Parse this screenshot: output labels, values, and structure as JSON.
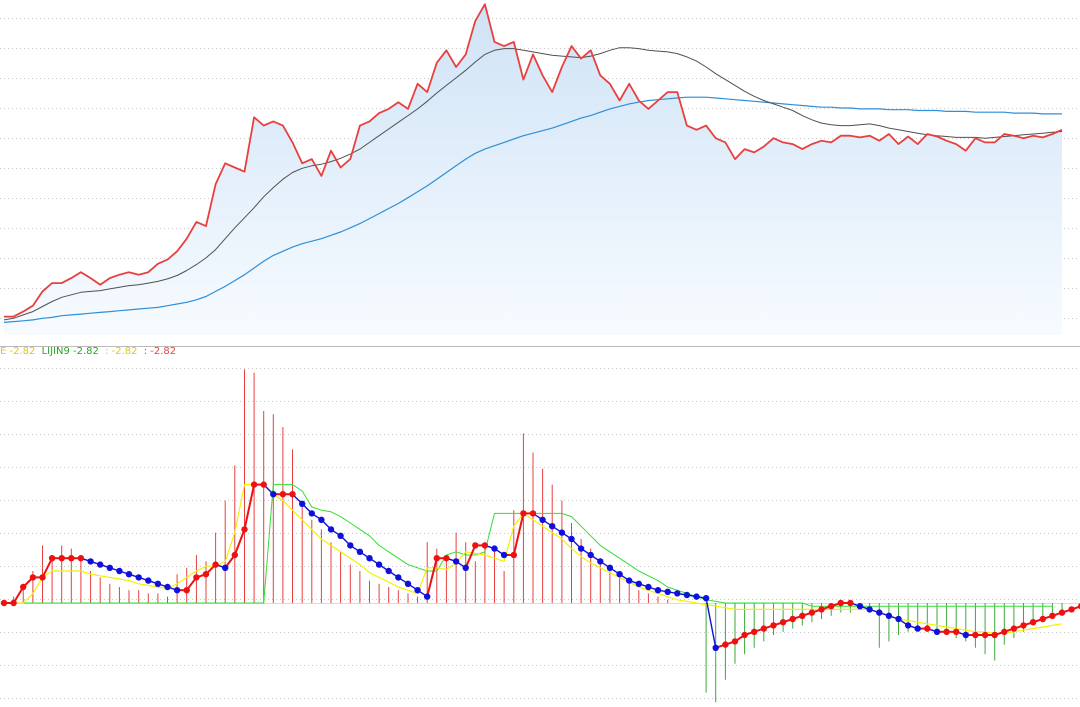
{
  "colors": {
    "price": "#e8403f",
    "ma_short": "#505050",
    "ma_long": "#2f8fd8",
    "fill_top": "#cfe3f6",
    "fill_bottom": "#f7fbff",
    "bar_up": "#e8403f",
    "bar_down": "#3fa83a",
    "dot_up": "#ee1111",
    "dot_down": "#1010dd",
    "line_yellow": "#f2f200",
    "line_green": "#33dd33",
    "grid": "#c8c8c8",
    "separator": "#bbbbbb"
  },
  "legend": [
    {
      "text": "E -2.82",
      "color": "#e6c800"
    },
    {
      "text": "LIJIN9 -2.82",
      "color": "#22aa22"
    },
    {
      "text": ": -2.82",
      "color": "#e6c800"
    },
    {
      "text": ": -2.82",
      "color": "#e8403f"
    }
  ],
  "chart_data": [
    {
      "type": "area",
      "grid": true,
      "series": [
        {
          "values": [
            22,
            22,
            28,
            35,
            52,
            62,
            62,
            68,
            75,
            68,
            60,
            68,
            72,
            75,
            72,
            75,
            85,
            90,
            100,
            115,
            135,
            130,
            180,
            205,
            200,
            195,
            260,
            250,
            255,
            250,
            230,
            205,
            210,
            190,
            220,
            200,
            210,
            250,
            255,
            265,
            270,
            278,
            270,
            300,
            290,
            325,
            340,
            320,
            335,
            375,
            395,
            350,
            345,
            350,
            305,
            335,
            310,
            290,
            320,
            345,
            330,
            340,
            310,
            300,
            280,
            300,
            280,
            270,
            280,
            290,
            290,
            250,
            245,
            250,
            235,
            230,
            210,
            222,
            218,
            225,
            235,
            230,
            228,
            222,
            228,
            232,
            230,
            238,
            238,
            236,
            238,
            232,
            240,
            228,
            237,
            228,
            240,
            237,
            232,
            228,
            220,
            235,
            230,
            230,
            240,
            238,
            235,
            238,
            236,
            240,
            245
          ]
        },
        {
          "values": [
            18,
            20,
            24,
            28,
            34,
            40,
            45,
            48,
            51,
            52,
            53,
            55,
            57,
            59,
            60,
            62,
            64,
            67,
            71,
            77,
            84,
            92,
            102,
            115,
            128,
            140,
            152,
            165,
            176,
            186,
            194,
            199,
            202,
            204,
            207,
            211,
            216,
            222,
            230,
            238,
            246,
            254,
            262,
            270,
            279,
            289,
            298,
            307,
            316,
            326,
            335,
            340,
            342,
            342,
            340,
            338,
            336,
            334,
            333,
            332,
            331,
            333,
            336,
            340,
            343,
            343,
            342,
            340,
            339,
            338,
            336,
            332,
            327,
            320,
            312,
            305,
            298,
            291,
            285,
            280,
            276,
            272,
            268,
            262,
            257,
            253,
            251,
            250,
            250,
            251,
            252,
            250,
            247,
            245,
            243,
            241,
            239,
            238,
            237,
            236,
            236,
            236,
            235,
            236,
            237,
            238,
            239,
            240,
            241,
            242,
            243
          ]
        },
        {
          "values": [
            15,
            16,
            17,
            18,
            20,
            21,
            23,
            24,
            25,
            26,
            27,
            28,
            29,
            30,
            31,
            32,
            33,
            35,
            37,
            39,
            42,
            46,
            52,
            58,
            65,
            72,
            80,
            88,
            95,
            100,
            105,
            109,
            112,
            115,
            119,
            123,
            128,
            133,
            139,
            145,
            151,
            157,
            164,
            171,
            178,
            186,
            194,
            202,
            210,
            217,
            222,
            226,
            230,
            234,
            238,
            241,
            244,
            247,
            251,
            255,
            259,
            262,
            266,
            270,
            273,
            276,
            278,
            280,
            281,
            282,
            283,
            284,
            284,
            284,
            283,
            282,
            281,
            280,
            279,
            278,
            277,
            276,
            275,
            274,
            273,
            272,
            272,
            271,
            271,
            270,
            270,
            270,
            269,
            269,
            269,
            268,
            268,
            268,
            267,
            267,
            267,
            266,
            266,
            266,
            266,
            265,
            265,
            265,
            264,
            264,
            264
          ]
        }
      ]
    },
    {
      "type": "bar",
      "grid": true,
      "series": [
        {
          "values": [
            0,
            0.2,
            0.6,
            1.0,
            1.8,
            1.5,
            1.8,
            1.7,
            1.5,
            1.0,
            0.8,
            0.6,
            0.5,
            0.4,
            0.4,
            0.3,
            0.3,
            0.2,
            0.9,
            1.1,
            1.5,
            1.3,
            2.2,
            3.2,
            4.3,
            7.3,
            7.2,
            6.0,
            5.9,
            5.5,
            4.8,
            3.0,
            2.6,
            2.3,
            1.9,
            1.6,
            1.2,
            1.0,
            0.7,
            0.6,
            0.5,
            0.4,
            0.3,
            0.2,
            1.9,
            1.7,
            1.3,
            2.2,
            1.9,
            1.3,
            1.7,
            1.6,
            1.0,
            2.9,
            5.3,
            4.7,
            4.2,
            3.7,
            3.2,
            2.5,
            2.0,
            1.7,
            1.4,
            1.2,
            0.9,
            0.6,
            0.4,
            0.3,
            0.2,
            0.1,
            0.0,
            0.0,
            0.0,
            -2.8,
            -3.1,
            -2.4,
            -1.9,
            -1.6,
            -1.4,
            -1.2,
            -1.0,
            -0.9,
            -0.8,
            -0.7,
            -0.6,
            -0.5,
            -0.4,
            -0.3,
            -0.3,
            -0.2,
            -0.1,
            -1.4,
            -1.2,
            -1.0,
            -0.9,
            -0.8,
            -0.9,
            -0.9,
            -1.0,
            -1.1,
            -1.2,
            -1.4,
            -1.6,
            -1.8,
            -1.3,
            -1.1,
            -0.9,
            -0.7,
            -0.6,
            -0.5,
            -0.4
          ]
        },
        {
          "values": [
            0,
            0,
            0,
            0.3,
            0.8,
            1.0,
            1.0,
            1.0,
            1.0,
            0.9,
            0.85,
            0.8,
            0.75,
            0.7,
            0.6,
            0.55,
            0.5,
            0.45,
            0.6,
            0.8,
            1.0,
            1.15,
            1.15,
            1.3,
            2.2,
            3.7,
            3.7,
            3.7,
            3.4,
            3.2,
            2.9,
            2.6,
            2.3,
            2.0,
            1.8,
            1.6,
            1.4,
            1.2,
            0.95,
            0.8,
            0.65,
            0.5,
            0.4,
            0.3,
            1.1,
            1.1,
            1.05,
            1.25,
            1.6,
            1.55,
            1.5,
            1.4,
            1.3,
            2.4,
            2.8,
            2.6,
            2.4,
            2.2,
            2.0,
            1.7,
            1.45,
            1.25,
            1.1,
            0.95,
            0.8,
            0.65,
            0.5,
            0.4,
            0.3,
            0.2,
            0.1,
            0.05,
            0.0,
            -0.05,
            -0.1,
            -0.15,
            -0.2,
            -0.2,
            -0.2,
            -0.2,
            -0.2,
            -0.2,
            -0.2,
            -0.2,
            -0.2,
            -0.2,
            -0.2,
            -0.2,
            -0.2,
            -0.2,
            -0.2,
            -0.3,
            -0.4,
            -0.5,
            -0.55,
            -0.6,
            -0.65,
            -0.7,
            -0.75,
            -0.8,
            -0.85,
            -0.9,
            -0.9,
            -0.95,
            -0.95,
            -0.9,
            -0.85,
            -0.8,
            -0.75,
            -0.7,
            -0.65
          ]
        },
        {
          "values": [
            0,
            0,
            0,
            0,
            0,
            0,
            0,
            0,
            0,
            0,
            0,
            0,
            0,
            0,
            0,
            0,
            0,
            0,
            0,
            0,
            0,
            0,
            0,
            0,
            0,
            0,
            0,
            0,
            3.7,
            3.7,
            3.7,
            3.5,
            3.0,
            2.9,
            2.85,
            2.7,
            2.5,
            2.3,
            2.1,
            1.8,
            1.6,
            1.4,
            1.2,
            1.1,
            1.0,
            1.0,
            1.5,
            1.6,
            1.5,
            1.5,
            1.6,
            2.8,
            2.8,
            2.8,
            2.8,
            2.8,
            2.8,
            2.8,
            2.8,
            2.7,
            2.4,
            2.1,
            1.8,
            1.6,
            1.4,
            1.2,
            1.0,
            0.85,
            0.7,
            0.5,
            0.4,
            0.3,
            0.2,
            0.1,
            0.05,
            0.0,
            0.0,
            0.0,
            0.0,
            0.0,
            0.0,
            0.0,
            0.0,
            0.0,
            -0.1,
            -0.1,
            -0.1,
            -0.1,
            -0.1,
            -0.1,
            -0.1,
            -0.1,
            -0.1,
            -0.1,
            -0.1,
            -0.1,
            -0.1,
            -0.1,
            -0.1,
            -0.1,
            -0.1,
            -0.1,
            -0.1,
            -0.1,
            -0.1,
            -0.1,
            -0.1,
            -0.1,
            -0.1,
            -0.1
          ]
        },
        {
          "values": [
            0,
            0,
            0.5,
            0.8,
            0.8,
            1.4,
            1.4,
            1.4,
            1.4,
            1.3,
            1.2,
            1.1,
            1.0,
            0.9,
            0.8,
            0.7,
            0.6,
            0.5,
            0.4,
            0.4,
            0.8,
            0.9,
            1.2,
            1.1,
            1.5,
            2.3,
            3.7,
            3.7,
            3.4,
            3.4,
            3.4,
            3.1,
            2.8,
            2.6,
            2.3,
            2.1,
            1.8,
            1.6,
            1.4,
            1.2,
            1.0,
            0.8,
            0.6,
            0.4,
            0.2,
            1.4,
            1.4,
            1.3,
            1.1,
            1.8,
            1.8,
            1.7,
            1.5,
            1.5,
            2.8,
            2.8,
            2.6,
            2.4,
            2.2,
            2.0,
            1.7,
            1.5,
            1.3,
            1.1,
            0.9,
            0.7,
            0.6,
            0.5,
            0.4,
            0.35,
            0.3,
            0.25,
            0.2,
            0.15,
            -1.4,
            -1.3,
            -1.2,
            -1.0,
            -0.9,
            -0.8,
            -0.7,
            -0.6,
            -0.5,
            -0.4,
            -0.3,
            -0.2,
            -0.1,
            0.0,
            0.0,
            -0.1,
            -0.2,
            -0.3,
            -0.4,
            -0.5,
            -0.7,
            -0.8,
            -0.8,
            -0.9,
            -0.9,
            -0.9,
            -1.0,
            -1.0,
            -1.0,
            -1.0,
            -0.9,
            -0.8,
            -0.7,
            -0.6,
            -0.5,
            -0.4,
            -0.3,
            -0.2,
            -0.1,
            0.0,
            0.1
          ]
        }
      ]
    }
  ]
}
